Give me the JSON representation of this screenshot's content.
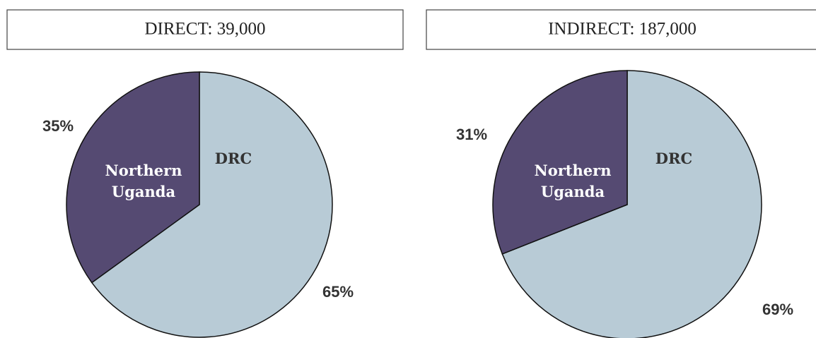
{
  "chart_data": [
    {
      "type": "pie",
      "title": "DIRECT: 39,000",
      "categories": [
        "DRC",
        "Northern Uganda"
      ],
      "values": [
        65,
        35
      ],
      "value_labels": [
        "65%",
        "35%"
      ],
      "colors": [
        "#b8cbd6",
        "#554a72"
      ]
    },
    {
      "type": "pie",
      "title": "INDIRECT: 187,000",
      "categories": [
        "DRC",
        "Northern Uganda"
      ],
      "values": [
        69,
        31
      ],
      "value_labels": [
        "69%",
        "31%"
      ],
      "colors": [
        "#b8cbd6",
        "#554a72"
      ]
    }
  ]
}
